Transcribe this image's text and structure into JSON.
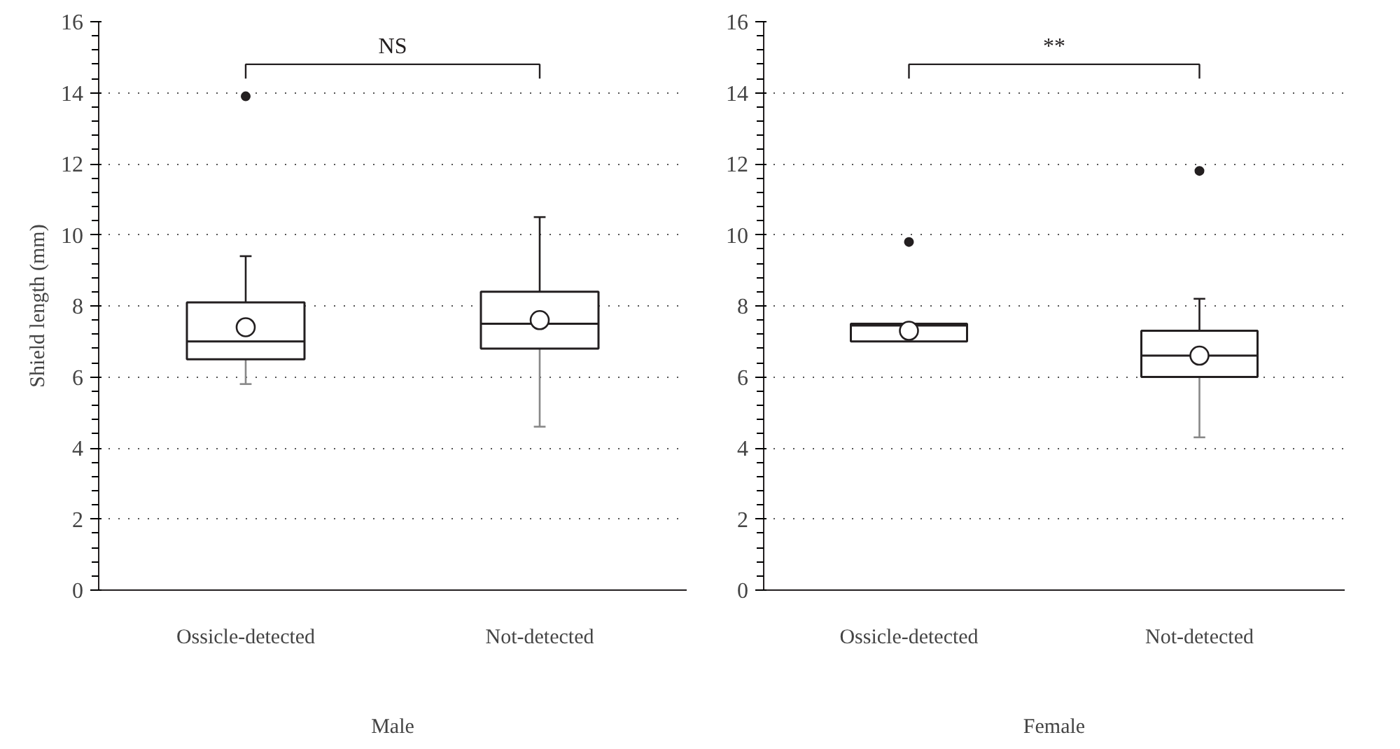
{
  "chart_data": [
    {
      "type": "box",
      "ylabel": "Shield length (mm)",
      "xlabel": "Male",
      "categories": [
        "Ossicle-detected",
        "Not-detected"
      ],
      "boxes": [
        {
          "low": 5.8,
          "q1": 6.5,
          "median": 7.0,
          "q3": 8.1,
          "high": 9.4,
          "mean": 7.4,
          "outliers": [
            13.9
          ]
        },
        {
          "low": 4.6,
          "q1": 6.8,
          "median": 7.5,
          "q3": 8.4,
          "high": 10.5,
          "mean": 7.6
        }
      ],
      "color": "#231f20",
      "ylim": [
        0,
        16
      ],
      "yticks": [
        0,
        2,
        4,
        6,
        8,
        10,
        12,
        14,
        16
      ],
      "grid": "y",
      "annotations": [
        "NS"
      ]
    },
    {
      "type": "box",
      "xlabel": "Female",
      "categories": [
        "Ossicle-detected",
        "Not-detected"
      ],
      "boxes": [
        {
          "low": 7.0,
          "q1": 7.0,
          "median": 7.45,
          "q3": 7.5,
          "high": 7.5,
          "mean": 7.3,
          "outliers": [
            9.8
          ]
        },
        {
          "low": 4.3,
          "q1": 6.0,
          "median": 6.6,
          "q3": 7.3,
          "high": 8.2,
          "mean": 6.6,
          "outliers": [
            11.8
          ]
        }
      ],
      "color": "#231f20",
      "ylim": [
        0,
        16
      ],
      "yticks": [
        0,
        2,
        4,
        6,
        8,
        10,
        12,
        14,
        16
      ],
      "grid": "y",
      "annotations": [
        "**"
      ]
    }
  ]
}
